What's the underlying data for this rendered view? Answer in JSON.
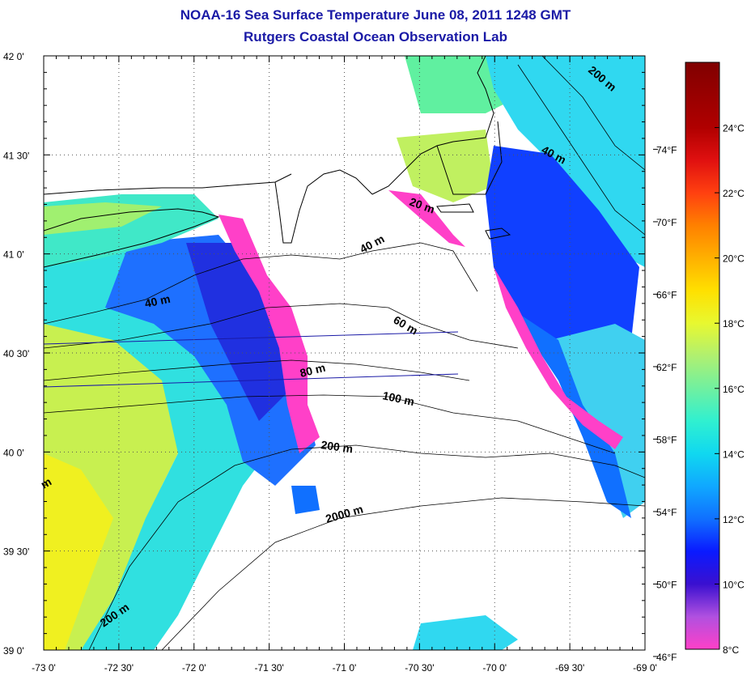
{
  "title": "NOAA-16 Sea Surface Temperature June 08, 2011 1248 GMT",
  "subtitle": "Rutgers Coastal Ocean Observation Lab",
  "map": {
    "lon_range": [
      -73.0,
      -69.0
    ],
    "lat_range": [
      39.0,
      42.0
    ],
    "grid": "dotted",
    "lat_ticks": [
      {
        "value": 39.0,
        "label": "39 0'"
      },
      {
        "value": 39.5,
        "label": "39 30'"
      },
      {
        "value": 40.0,
        "label": "40 0'"
      },
      {
        "value": 40.5,
        "label": "40 30'"
      },
      {
        "value": 41.0,
        "label": "41 0'"
      },
      {
        "value": 41.5,
        "label": "41 30'"
      },
      {
        "value": 42.0,
        "label": "42 0'"
      }
    ],
    "lon_ticks": [
      {
        "value": -73.0,
        "label": "-73 0'"
      },
      {
        "value": -72.5,
        "label": "-72 30'"
      },
      {
        "value": -72.0,
        "label": "-72 0'"
      },
      {
        "value": -71.5,
        "label": "-71 30'"
      },
      {
        "value": -71.0,
        "label": "-71 0'"
      },
      {
        "value": -70.5,
        "label": "-70 30'"
      },
      {
        "value": -70.0,
        "label": "-70 0'"
      },
      {
        "value": -69.5,
        "label": "-69 30'"
      },
      {
        "value": -69.0,
        "label": "-69 0'"
      }
    ],
    "isobath_labels": [
      "200 m",
      "40 m",
      "20 m",
      "40 m",
      "40 m",
      "60 m",
      "80 m",
      "100 m",
      "200 m",
      "2000 m",
      "200 m",
      "m"
    ]
  },
  "colorbar": {
    "min_c": 8,
    "max_c": 26,
    "celsius_ticks": [
      {
        "value": 8,
        "label": "8°C"
      },
      {
        "value": 10,
        "label": "10°C"
      },
      {
        "value": 12,
        "label": "12°C"
      },
      {
        "value": 14,
        "label": "14°C"
      },
      {
        "value": 16,
        "label": "16°C"
      },
      {
        "value": 18,
        "label": "18°C"
      },
      {
        "value": 20,
        "label": "20°C"
      },
      {
        "value": 22,
        "label": "22°C"
      },
      {
        "value": 24,
        "label": "24°C"
      }
    ],
    "fahrenheit_ticks": [
      {
        "value": 46,
        "label": "46°F"
      },
      {
        "value": 50,
        "label": "50°F"
      },
      {
        "value": 54,
        "label": "54°F"
      },
      {
        "value": 58,
        "label": "58°F"
      },
      {
        "value": 62,
        "label": "62°F"
      },
      {
        "value": 66,
        "label": "66°F"
      },
      {
        "value": 70,
        "label": "70°F"
      },
      {
        "value": 74,
        "label": "74°F"
      }
    ],
    "stops": [
      {
        "c": 8,
        "color": "#ff40c8"
      },
      {
        "c": 9,
        "color": "#b050e0"
      },
      {
        "c": 10,
        "color": "#3a10d0"
      },
      {
        "c": 11,
        "color": "#0a1aff"
      },
      {
        "c": 12,
        "color": "#1070ff"
      },
      {
        "c": 13,
        "color": "#10a8ff"
      },
      {
        "c": 14,
        "color": "#10d8f0"
      },
      {
        "c": 15,
        "color": "#30f0d0"
      },
      {
        "c": 16,
        "color": "#70f0a0"
      },
      {
        "c": 17,
        "color": "#b0f070"
      },
      {
        "c": 18,
        "color": "#e8f830"
      },
      {
        "c": 19,
        "color": "#ffe000"
      },
      {
        "c": 20,
        "color": "#ffb000"
      },
      {
        "c": 21,
        "color": "#ff8000"
      },
      {
        "c": 22,
        "color": "#ff4010"
      },
      {
        "c": 23,
        "color": "#e01010"
      },
      {
        "c": 24,
        "color": "#b00000"
      },
      {
        "c": 26,
        "color": "#800000"
      }
    ]
  }
}
